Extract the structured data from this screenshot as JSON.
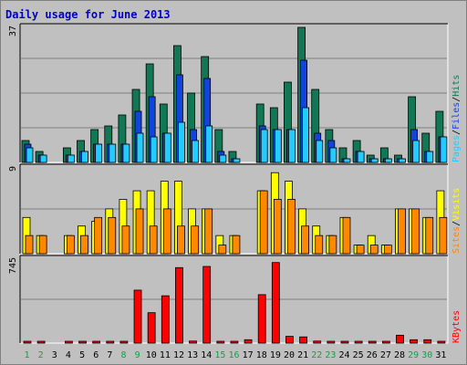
{
  "title": "Daily usage for June 2013",
  "colors": {
    "background": "#c0c0c0",
    "hits": "#117755",
    "files": "#1144dd",
    "pages": "#22ccff",
    "visits": "#ffff00",
    "sites": "#ff8800",
    "kbytes": "#ff0000",
    "weekend_day": "#00aa44",
    "weekday": "#000000"
  },
  "chart_data": [
    {
      "type": "bar",
      "categories": [
        "1",
        "2",
        "3",
        "4",
        "5",
        "6",
        "7",
        "8",
        "9",
        "10",
        "11",
        "12",
        "13",
        "14",
        "15",
        "16",
        "17",
        "18",
        "19",
        "20",
        "21",
        "22",
        "23",
        "24",
        "25",
        "26",
        "27",
        "28",
        "29",
        "30",
        "31"
      ],
      "weekend_days": [
        "1",
        "2",
        "8",
        "9",
        "15",
        "16",
        "22",
        "23",
        "29",
        "30"
      ],
      "y_max_label": "37",
      "ylim": [
        0,
        37
      ],
      "legend": {
        "hits": "Hits",
        "files": "Files",
        "pages": "Pages",
        "sep": "/"
      },
      "series": [
        {
          "name": "Hits",
          "values": [
            6,
            3,
            0,
            4,
            6,
            9,
            10,
            13,
            20,
            27,
            16,
            32,
            19,
            29,
            9,
            3,
            0,
            16,
            15,
            22,
            37,
            20,
            9,
            4,
            6,
            2,
            4,
            2,
            18,
            8,
            14
          ]
        },
        {
          "name": "Files",
          "values": [
            5,
            2,
            0,
            2,
            3,
            5,
            5,
            5,
            14,
            18,
            8,
            24,
            9,
            23,
            3,
            1,
            0,
            10,
            9,
            9,
            28,
            8,
            6,
            1,
            3,
            1,
            1,
            1,
            9,
            3,
            7
          ]
        },
        {
          "name": "Pages",
          "values": [
            4,
            2,
            0,
            2,
            3,
            5,
            5,
            5,
            8,
            7,
            8,
            11,
            6,
            10,
            2,
            1,
            0,
            9,
            9,
            9,
            15,
            6,
            4,
            1,
            3,
            1,
            1,
            1,
            6,
            3,
            7
          ]
        }
      ]
    },
    {
      "type": "bar",
      "categories": [
        "1",
        "2",
        "3",
        "4",
        "5",
        "6",
        "7",
        "8",
        "9",
        "10",
        "11",
        "12",
        "13",
        "14",
        "15",
        "16",
        "17",
        "18",
        "19",
        "20",
        "21",
        "22",
        "23",
        "24",
        "25",
        "26",
        "27",
        "28",
        "29",
        "30",
        "31"
      ],
      "y_max_label": "9",
      "ylim": [
        0,
        9
      ],
      "legend": {
        "visits": "Visits",
        "sites": "Sites",
        "sep": "/"
      },
      "series": [
        {
          "name": "Visits",
          "values": [
            3.8,
            1.9,
            0,
            1.9,
            2.9,
            3.4,
            4.7,
            5.7,
            6.6,
            6.6,
            7.6,
            7.6,
            4.7,
            4.7,
            1.9,
            1.9,
            0,
            6.6,
            8.5,
            7.6,
            4.7,
            2.9,
            1.9,
            3.8,
            0.9,
            1.9,
            0.9,
            4.7,
            4.7,
            3.8,
            6.6
          ]
        },
        {
          "name": "Sites",
          "values": [
            1.9,
            1.9,
            0,
            1.9,
            1.9,
            3.8,
            3.8,
            2.9,
            4.7,
            2.9,
            4.7,
            2.9,
            2.9,
            4.7,
            0.9,
            1.9,
            0,
            6.6,
            5.7,
            5.7,
            2.9,
            1.9,
            1.9,
            3.8,
            0.9,
            0.9,
            0.9,
            4.7,
            4.7,
            3.8,
            3.8
          ]
        }
      ]
    },
    {
      "type": "bar",
      "categories": [
        "1",
        "2",
        "3",
        "4",
        "5",
        "6",
        "7",
        "8",
        "9",
        "10",
        "11",
        "12",
        "13",
        "14",
        "15",
        "16",
        "17",
        "18",
        "19",
        "20",
        "21",
        "22",
        "23",
        "24",
        "25",
        "26",
        "27",
        "28",
        "29",
        "30",
        "31"
      ],
      "y_max_label": "745",
      "ylim": [
        0,
        745
      ],
      "legend": {
        "kbytes": "KBytes"
      },
      "series": [
        {
          "name": "KBytes",
          "values": [
            8,
            8,
            0,
            8,
            8,
            14,
            14,
            14,
            470,
            270,
            420,
            670,
            18,
            680,
            8,
            8,
            30,
            430,
            715,
            60,
            55,
            18,
            8,
            8,
            8,
            8,
            8,
            70,
            30,
            30,
            8
          ]
        }
      ]
    }
  ]
}
